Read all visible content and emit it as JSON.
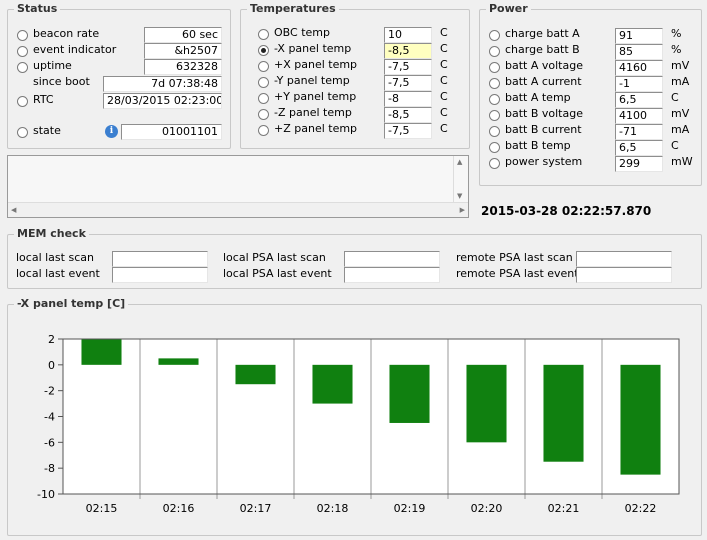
{
  "status": {
    "title": "Status",
    "rows": [
      {
        "label": "beacon rate",
        "value": "60 sec"
      },
      {
        "label": "event indicator",
        "value": "&h2507"
      },
      {
        "label": "uptime",
        "value": "632328"
      },
      {
        "label": "since boot",
        "value": "7d 07:38:48"
      },
      {
        "label": "RTC",
        "value": "28/03/2015 02:23:00"
      },
      {
        "label": "state",
        "value": "01001101"
      }
    ]
  },
  "temperatures": {
    "title": "Temperatures",
    "unit": "C",
    "rows": [
      {
        "label": "OBC temp",
        "value": "10",
        "selected": false
      },
      {
        "label": "-X panel temp",
        "value": "-8,5",
        "selected": true
      },
      {
        "label": "+X panel temp",
        "value": "-7,5",
        "selected": false
      },
      {
        "label": "-Y panel temp",
        "value": "-7,5",
        "selected": false
      },
      {
        "label": "+Y panel temp",
        "value": "-8",
        "selected": false
      },
      {
        "label": "-Z panel temp",
        "value": "-8,5",
        "selected": false
      },
      {
        "label": "+Z panel temp",
        "value": "-7,5",
        "selected": false
      }
    ]
  },
  "power": {
    "title": "Power",
    "rows": [
      {
        "label": "charge batt A",
        "value": "91",
        "unit": "%"
      },
      {
        "label": "charge batt B",
        "value": "85",
        "unit": "%"
      },
      {
        "label": "batt A voltage",
        "value": "4160",
        "unit": "mV"
      },
      {
        "label": "batt A current",
        "value": "-1",
        "unit": "mA"
      },
      {
        "label": "batt A temp",
        "value": "6,5",
        "unit": "C"
      },
      {
        "label": "batt B voltage",
        "value": "4100",
        "unit": "mV"
      },
      {
        "label": "batt B current",
        "value": "-71",
        "unit": "mA"
      },
      {
        "label": "batt B temp",
        "value": "6,5",
        "unit": "C"
      },
      {
        "label": "power system",
        "value": "299",
        "unit": "mW"
      }
    ]
  },
  "timestamp": "2015-03-28 02:22:57.870",
  "mem": {
    "title": "MEM check",
    "local_last_scan": "local last scan",
    "local_last_event": "local last event",
    "local_psa_last_scan": "local PSA last scan",
    "local_psa_last_event": "local PSA last event",
    "remote_psa_last_scan": "remote PSA last scan",
    "remote_psa_last_event": "remote PSA last event"
  },
  "chart_panel": {
    "title": "-X panel temp [C]"
  },
  "chart_data": {
    "type": "bar",
    "title": "-X panel temp [C]",
    "categories": [
      "02:15",
      "02:16",
      "02:17",
      "02:18",
      "02:19",
      "02:20",
      "02:21",
      "02:22"
    ],
    "values": [
      2,
      0.5,
      -1.5,
      -3,
      -4.5,
      -6,
      -7.5,
      -8.5
    ],
    "ylim": [
      -10,
      2
    ],
    "yticks": [
      2,
      0,
      -2,
      -4,
      -6,
      -8,
      -10
    ],
    "bar_color": "#108010",
    "grid": true
  }
}
